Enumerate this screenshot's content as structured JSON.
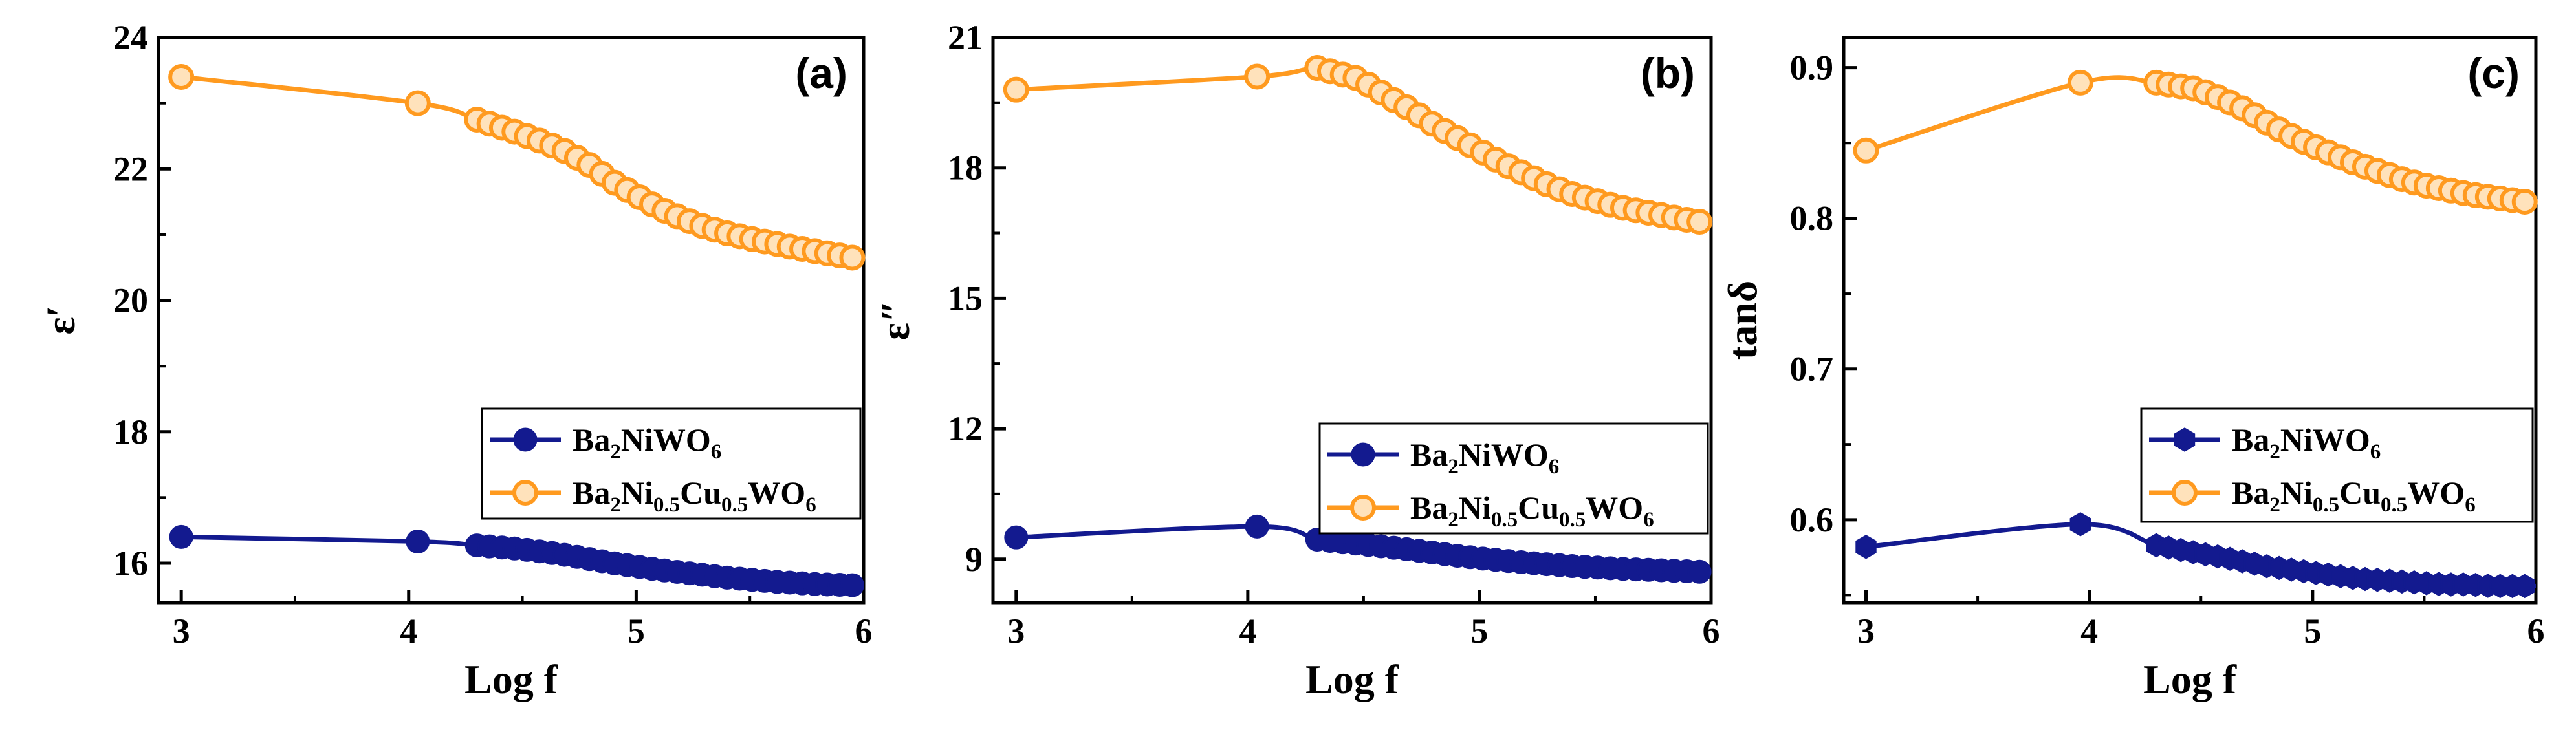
{
  "colors": {
    "series1": "#131a8f",
    "series2": "#ff9a1f",
    "axis": "#000000"
  },
  "chart_data": [
    {
      "type": "line",
      "panel_label": "(a)",
      "xlabel": "Log f",
      "ylabel": "ε′",
      "xlim": [
        2.9,
        6.0
      ],
      "ylim": [
        15.4,
        24.0
      ],
      "xticks": [
        3,
        4,
        5,
        6
      ],
      "xtick_labels": [
        "3",
        "4",
        "5",
        "6"
      ],
      "yticks": [
        16,
        18,
        20,
        22,
        24
      ],
      "ytick_labels": [
        "16",
        "18",
        "20",
        "22",
        "24"
      ],
      "legend_position": "bottom-right",
      "series": [
        {
          "name": "Ba2NiWO6",
          "label_parts": [
            "Ba",
            "2",
            "NiWO",
            "6"
          ],
          "marker": "circle",
          "x": [
            3.0,
            4.04,
            4.3,
            4.48,
            4.6,
            4.7,
            4.8,
            4.9,
            5.0,
            5.1,
            5.2,
            5.3,
            5.4,
            5.5,
            5.6,
            5.7,
            5.8,
            5.9,
            6.0
          ],
          "y": [
            16.4,
            16.33,
            16.27,
            16.22,
            16.17,
            16.12,
            16.06,
            16.0,
            15.95,
            15.9,
            15.86,
            15.82,
            15.78,
            15.75,
            15.72,
            15.7,
            15.68,
            15.67,
            15.66
          ]
        },
        {
          "name": "Ba2Ni0.5Cu0.5WO6",
          "label_parts": [
            "Ba",
            "2",
            "Ni",
            "0.5",
            "Cu",
            "0.5",
            "WO",
            "6"
          ],
          "marker": "circle-open",
          "x": [
            3.0,
            4.04,
            4.3,
            4.48,
            4.6,
            4.7,
            4.8,
            4.9,
            5.0,
            5.1,
            5.2,
            5.3,
            5.4,
            5.5,
            5.6,
            5.7,
            5.8,
            5.9,
            6.0
          ],
          "y": [
            23.4,
            23.0,
            22.75,
            22.55,
            22.4,
            22.25,
            22.05,
            21.8,
            21.6,
            21.4,
            21.25,
            21.12,
            21.02,
            20.94,
            20.87,
            20.8,
            20.74,
            20.68,
            20.62
          ]
        }
      ]
    },
    {
      "type": "line",
      "panel_label": "(b)",
      "xlabel": "Log f",
      "ylabel": "ε″",
      "xlim": [
        2.9,
        6.0
      ],
      "ylim": [
        8.0,
        21.0
      ],
      "xticks": [
        3,
        4,
        5,
        6
      ],
      "xtick_labels": [
        "3",
        "4",
        "5",
        "6"
      ],
      "yticks": [
        9,
        12,
        15,
        18,
        21
      ],
      "ytick_labels": [
        "9",
        "12",
        "15",
        "18",
        "21"
      ],
      "legend_position": "bottom-right",
      "series": [
        {
          "name": "Ba2NiWO6",
          "label_parts": [
            "Ba",
            "2",
            "NiWO",
            "6"
          ],
          "marker": "circle",
          "x": [
            3.0,
            4.04,
            4.3,
            4.48,
            4.6,
            4.7,
            4.8,
            4.9,
            5.0,
            5.1,
            5.2,
            5.3,
            5.4,
            5.5,
            5.6,
            5.7,
            5.8,
            5.9,
            6.0
          ],
          "y": [
            9.5,
            9.75,
            9.45,
            9.35,
            9.28,
            9.22,
            9.15,
            9.08,
            9.02,
            8.97,
            8.92,
            8.88,
            8.84,
            8.81,
            8.78,
            8.76,
            8.74,
            8.72,
            8.7
          ]
        },
        {
          "name": "Ba2Ni0.5Cu0.5WO6",
          "label_parts": [
            "Ba",
            "2",
            "Ni",
            "0.5",
            "Cu",
            "0.5",
            "WO",
            "6"
          ],
          "marker": "circle-open",
          "x": [
            3.0,
            4.04,
            4.3,
            4.48,
            4.6,
            4.7,
            4.8,
            4.9,
            5.0,
            5.1,
            5.2,
            5.3,
            5.4,
            5.5,
            5.6,
            5.7,
            5.8,
            5.9,
            6.0
          ],
          "y": [
            19.8,
            20.1,
            20.3,
            20.05,
            19.65,
            19.35,
            19.0,
            18.7,
            18.4,
            18.1,
            17.85,
            17.6,
            17.4,
            17.25,
            17.1,
            17.0,
            16.9,
            16.8,
            16.72
          ]
        }
      ]
    },
    {
      "type": "line",
      "panel_label": "(c)",
      "xlabel": "Log f",
      "ylabel": "tanδ",
      "xlim": [
        2.9,
        6.0
      ],
      "ylim": [
        0.545,
        0.92
      ],
      "xticks": [
        3,
        4,
        5,
        6
      ],
      "xtick_labels": [
        "3",
        "4",
        "5",
        "6"
      ],
      "yticks": [
        0.6,
        0.7,
        0.8,
        0.9
      ],
      "ytick_labels": [
        "0.6",
        "0.7",
        "0.8",
        "0.9"
      ],
      "legend_position": "bottom-right",
      "series": [
        {
          "name": "Ba2NiWO6",
          "label_parts": [
            "Ba",
            "2",
            "NiWO",
            "6"
          ],
          "marker": "hexagon",
          "x": [
            3.0,
            3.96,
            4.3,
            4.48,
            4.6,
            4.7,
            4.8,
            4.9,
            5.0,
            5.1,
            5.2,
            5.3,
            5.4,
            5.5,
            5.6,
            5.7,
            5.8,
            5.9,
            6.0
          ],
          "y": [
            0.582,
            0.597,
            0.583,
            0.578,
            0.575,
            0.572,
            0.569,
            0.567,
            0.565,
            0.563,
            0.561,
            0.56,
            0.559,
            0.558,
            0.557,
            0.557,
            0.556,
            0.556,
            0.556
          ]
        },
        {
          "name": "Ba2Ni0.5Cu0.5WO6",
          "label_parts": [
            "Ba",
            "2",
            "Ni",
            "0.5",
            "Cu",
            "0.5",
            "WO",
            "6"
          ],
          "marker": "circle-open",
          "x": [
            3.0,
            3.96,
            4.3,
            4.48,
            4.6,
            4.7,
            4.8,
            4.9,
            5.0,
            5.1,
            5.2,
            5.3,
            5.4,
            5.5,
            5.6,
            5.7,
            5.8,
            5.9,
            6.0
          ],
          "y": [
            0.845,
            0.89,
            0.89,
            0.886,
            0.879,
            0.872,
            0.863,
            0.855,
            0.848,
            0.842,
            0.836,
            0.831,
            0.826,
            0.822,
            0.819,
            0.816,
            0.814,
            0.812,
            0.81
          ]
        }
      ]
    }
  ]
}
